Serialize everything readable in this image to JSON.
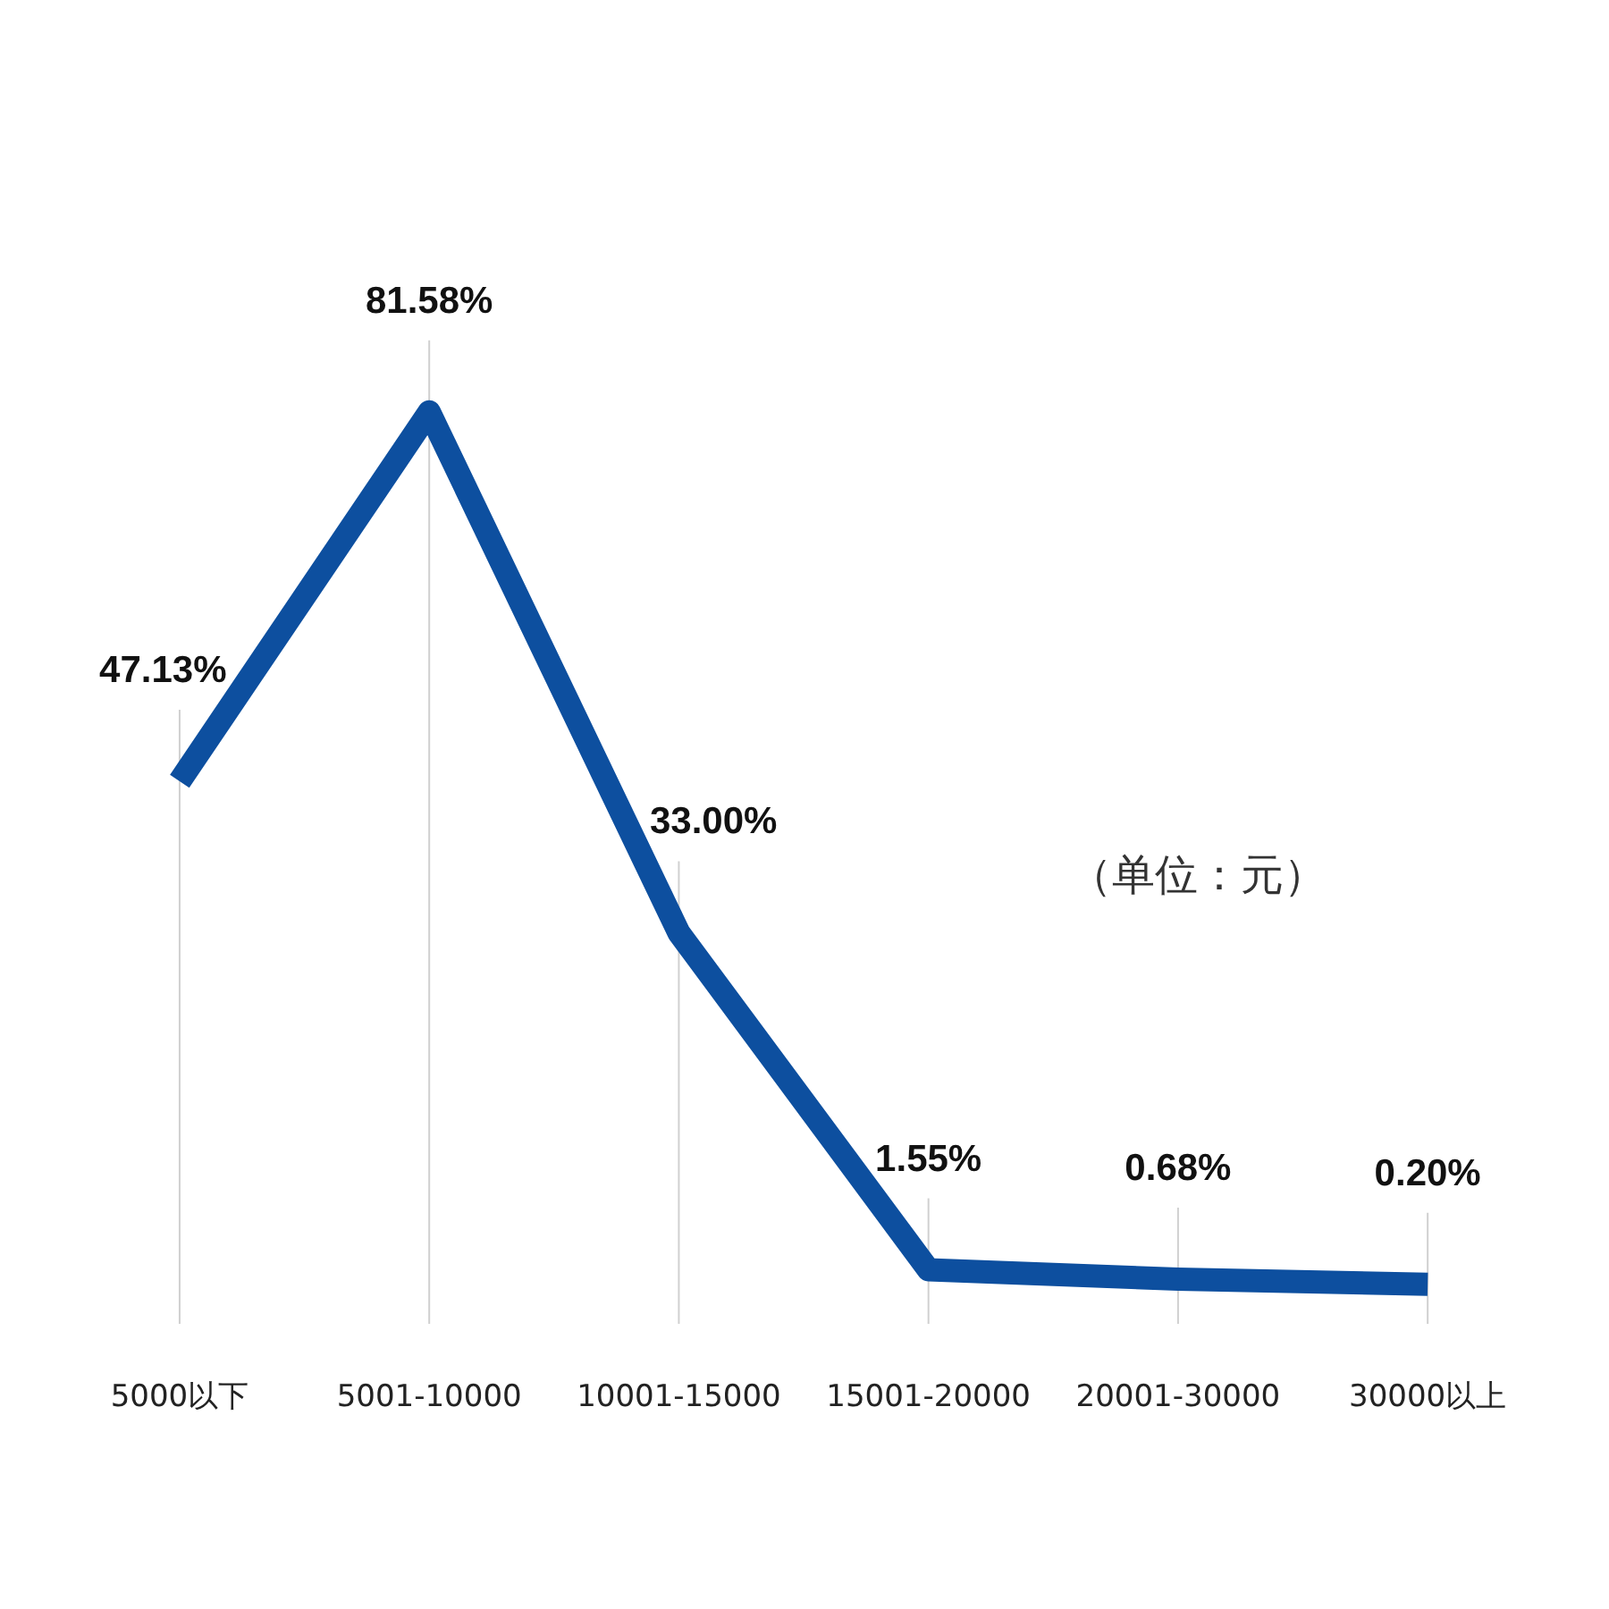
{
  "chart_data": {
    "type": "line",
    "categories": [
      "5000以下",
      "5001-10000",
      "10001-15000",
      "15001-20000",
      "20001-30000",
      "30000以上"
    ],
    "series": [
      {
        "color": "#0d4f9f",
        "values": [
          47.13,
          81.58,
          33.0,
          1.55,
          0.68,
          0.2
        ],
        "value_labels": [
          "47.13%",
          "81.58%",
          "33.00%",
          "1.55%",
          "0.68%",
          "0.20%"
        ]
      }
    ],
    "annotations": [
      "（单位：元）"
    ],
    "grid": "x",
    "tick_labels": "x",
    "line_style": "solid"
  }
}
